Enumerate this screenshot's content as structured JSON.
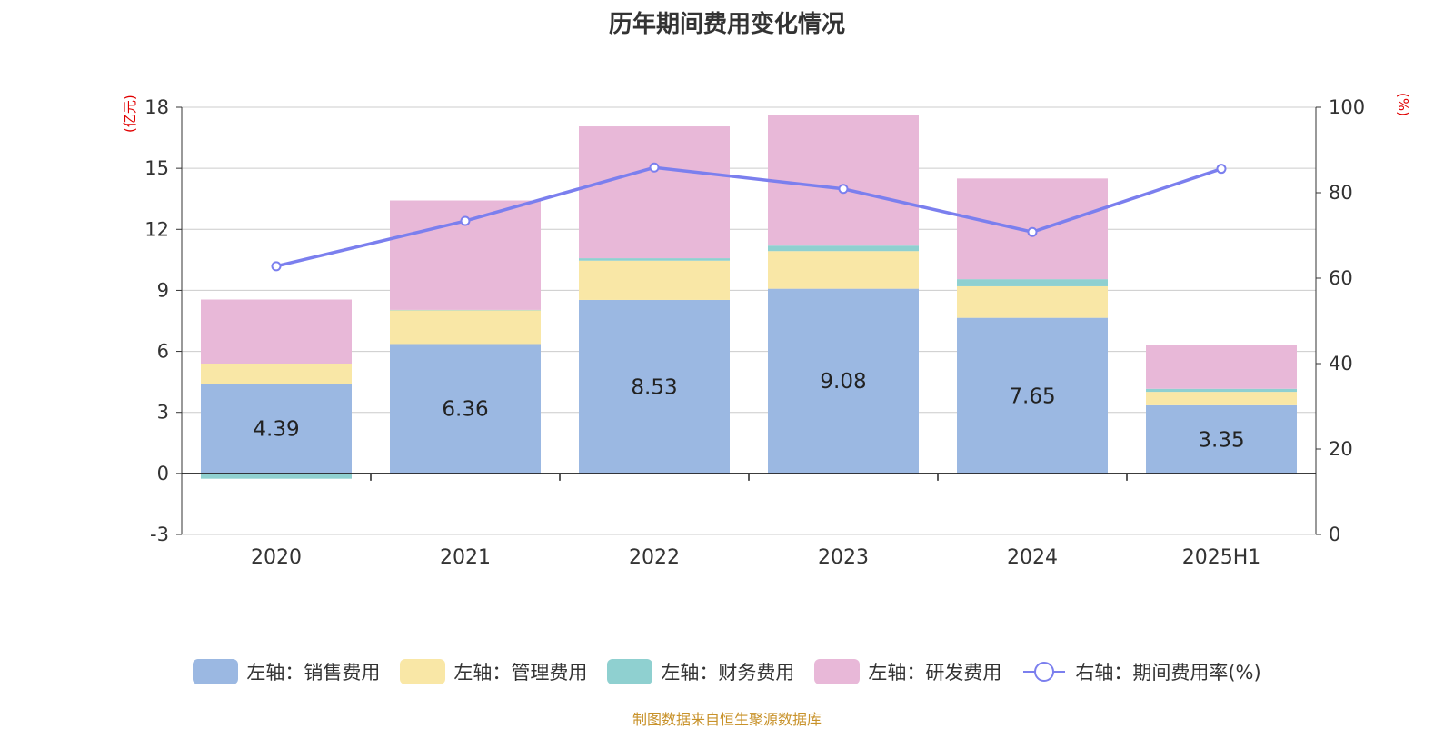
{
  "chart_data": {
    "type": "bar",
    "stacked": true,
    "title": "历年期间费用变化情况",
    "ylabel": "(亿元)",
    "y2label": "(%)",
    "ylim": [
      -3,
      18
    ],
    "yticks": [
      -3,
      0,
      3,
      6,
      9,
      12,
      15,
      18
    ],
    "y2lim": [
      0,
      100
    ],
    "y2ticks": [
      0,
      20,
      40,
      60,
      80,
      100
    ],
    "grid": true,
    "legend_position": "bottom",
    "categories": [
      "2020",
      "2021",
      "2022",
      "2023",
      "2024",
      "2025H1"
    ],
    "series": [
      {
        "name": "左轴：销售费用",
        "axis": "left",
        "color": "#9bb8e2",
        "values": [
          4.39,
          6.36,
          8.53,
          9.08,
          7.65,
          3.35
        ],
        "labels": [
          "4.39",
          "6.36",
          "8.53",
          "9.08",
          "7.65",
          "3.35"
        ]
      },
      {
        "name": "左轴：管理费用",
        "axis": "left",
        "color": "#f9e7a6",
        "values": [
          1.01,
          1.66,
          1.93,
          1.85,
          1.55,
          0.66
        ]
      },
      {
        "name": "左轴：财务费用",
        "axis": "left",
        "color": "#8fd0d0",
        "values": [
          -0.26,
          0.02,
          0.12,
          0.27,
          0.35,
          0.15
        ]
      },
      {
        "name": "左轴：研发费用",
        "axis": "left",
        "color": "#e8b8d8",
        "values": [
          3.15,
          5.38,
          6.48,
          6.41,
          4.95,
          2.14
        ]
      },
      {
        "name": "右轴：期间费用率(%)",
        "axis": "right",
        "type": "line",
        "color": "#7b7fee",
        "values": [
          62.8,
          73.4,
          85.9,
          80.9,
          70.8,
          85.6
        ]
      }
    ]
  },
  "source_note": "制图数据来自恒生聚源数据库"
}
